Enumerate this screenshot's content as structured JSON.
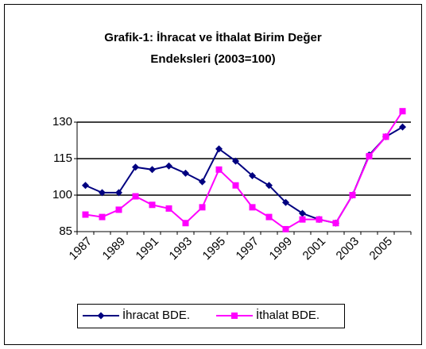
{
  "chart_data": {
    "type": "line",
    "title": "Grafik-1: İhracat ve İthalat Birim Değer Endeksleri (2003=100)",
    "categories": [
      "1987",
      null,
      "1989",
      null,
      "1991",
      null,
      "1993",
      null,
      "1995",
      null,
      "1997",
      null,
      "1999",
      null,
      "2001",
      null,
      "2003",
      null,
      "2005",
      null
    ],
    "series": [
      {
        "name": "İhracat BDE.",
        "color": "#000080",
        "marker": "diamond",
        "values": [
          104,
          101,
          101,
          111.5,
          110.5,
          112,
          109,
          105.5,
          119,
          114,
          108,
          104,
          97,
          92.5,
          90,
          88.5,
          100,
          116.5,
          124,
          128
        ]
      },
      {
        "name": "İthalat BDE.",
        "color": "#ff00ff",
        "marker": "square",
        "values": [
          92,
          91,
          94,
          99.5,
          96,
          94.5,
          88.5,
          95,
          110.5,
          104,
          95,
          91,
          86,
          90,
          90,
          88.5,
          100,
          116,
          124,
          134.5
        ]
      }
    ],
    "ylim": [
      85,
      130
    ],
    "yticks": [
      85,
      100,
      115,
      130
    ],
    "grid": true,
    "legend": "bottom"
  }
}
